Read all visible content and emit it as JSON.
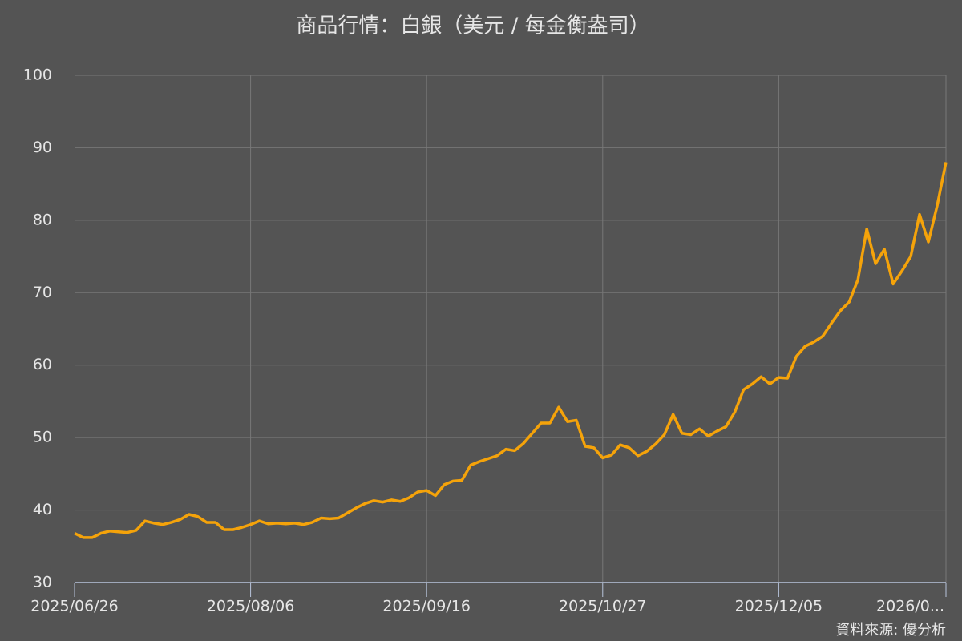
{
  "chart_data": {
    "type": "line",
    "title": "商品行情：白銀（美元 / 每金衡盎司）",
    "source": "資料來源: 優分析",
    "categories": [
      "2025/06/26",
      null,
      null,
      null,
      null,
      null,
      null,
      null,
      null,
      null,
      null,
      null,
      null,
      null,
      null,
      null,
      null,
      null,
      null,
      null,
      "2025/08/06",
      null,
      null,
      null,
      null,
      null,
      null,
      null,
      null,
      null,
      null,
      null,
      null,
      null,
      null,
      null,
      null,
      null,
      null,
      null,
      "2025/09/16",
      null,
      null,
      null,
      null,
      null,
      null,
      null,
      null,
      null,
      null,
      null,
      null,
      null,
      null,
      null,
      null,
      null,
      null,
      null,
      "2025/10/27",
      null,
      null,
      null,
      null,
      null,
      null,
      null,
      null,
      null,
      null,
      null,
      null,
      null,
      null,
      null,
      null,
      null,
      null,
      null,
      "2025/12/05",
      null,
      null,
      null,
      null,
      null,
      null,
      null,
      null,
      null,
      null,
      null,
      null,
      null,
      null,
      null,
      null,
      null,
      null,
      "2026/0..."
    ],
    "values": [
      36.8,
      36.2,
      36.2,
      36.8,
      37.1,
      37.0,
      36.9,
      37.2,
      38.5,
      38.2,
      38.0,
      38.3,
      38.7,
      39.4,
      39.1,
      38.3,
      38.3,
      37.3,
      37.3,
      37.6,
      38.0,
      38.5,
      38.1,
      38.2,
      38.1,
      38.2,
      38.0,
      38.3,
      38.9,
      38.8,
      38.9,
      39.6,
      40.3,
      40.9,
      41.3,
      41.1,
      41.4,
      41.2,
      41.7,
      42.5,
      42.7,
      42.0,
      43.5,
      44.0,
      44.1,
      46.2,
      46.7,
      47.1,
      47.5,
      48.4,
      48.2,
      49.2,
      50.6,
      52.0,
      52.0,
      54.2,
      52.2,
      52.4,
      48.8,
      48.6,
      47.2,
      47.6,
      49.0,
      48.6,
      47.5,
      48.1,
      49.1,
      50.4,
      53.2,
      50.6,
      50.4,
      51.2,
      50.2,
      50.9,
      51.5,
      53.5,
      56.6,
      57.4,
      58.4,
      57.4,
      58.3,
      58.2,
      61.2,
      62.6,
      63.2,
      64.0,
      65.8,
      67.5,
      68.7,
      71.8,
      78.8,
      74.0,
      76.0,
      71.2,
      73.0,
      75.0,
      80.8,
      77.0,
      82.0,
      88.0
    ],
    "color": "#f5a30a",
    "ylim": [
      30,
      100
    ],
    "yticks": [
      30,
      40,
      50,
      60,
      70,
      80,
      90,
      100
    ],
    "grid": true
  }
}
